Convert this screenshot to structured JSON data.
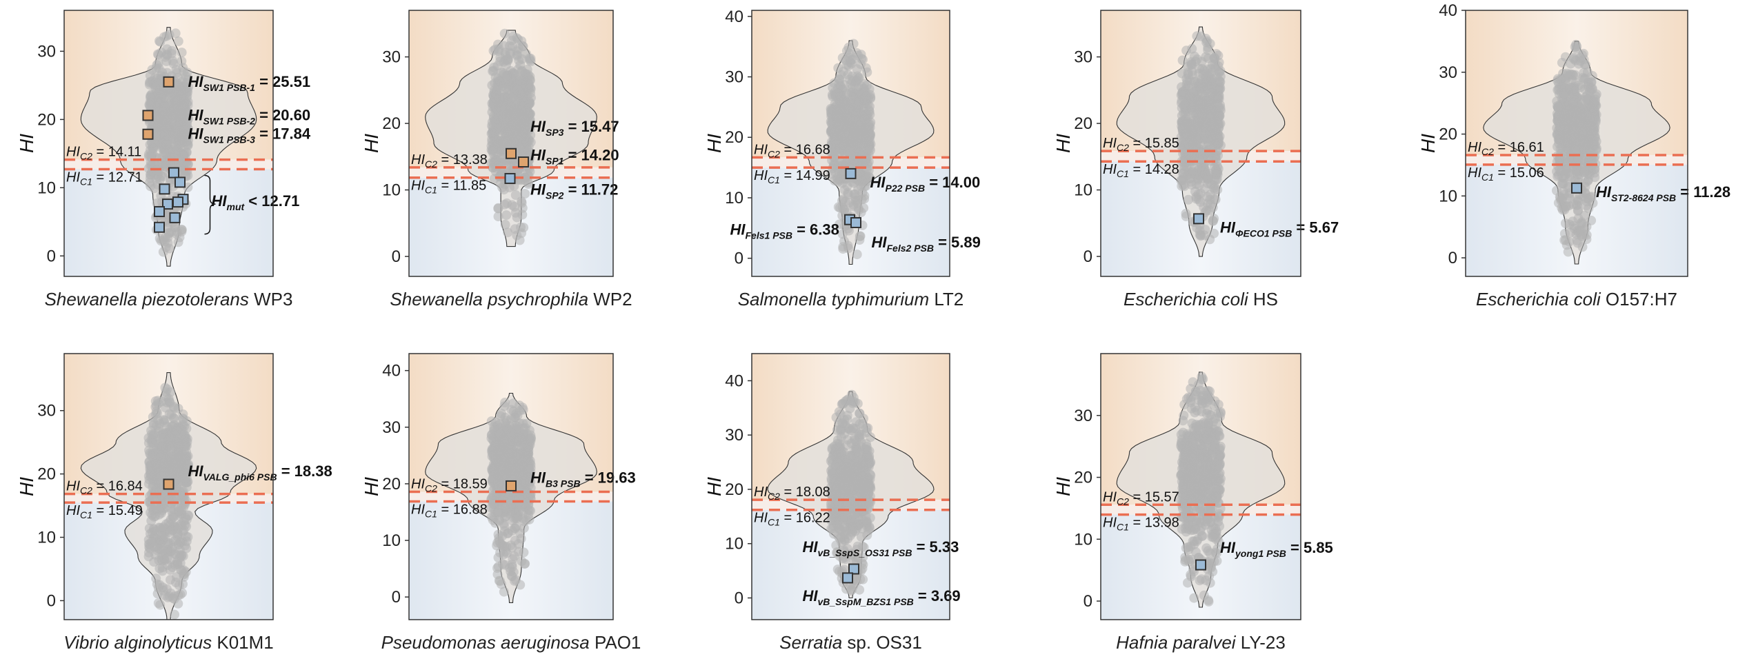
{
  "figure": {
    "colors": {
      "top_bg": "#f3dcc5",
      "bottom_bg": "#dfe7f0",
      "violin_fill": "#e3dfdb",
      "dot": "#b3b3b3",
      "threshold": "#ea6e52",
      "marker_orange": "#dfa46e",
      "marker_blue": "#9bbad6",
      "marker_stroke": "#333333"
    }
  },
  "chart_data": [
    {
      "type": "scatter",
      "subtype": "violin-jitter",
      "organism_italic": "Shewanella piezotolerans",
      "strain": "WP3",
      "ylabel": "HI",
      "ylim": [
        -3,
        36
      ],
      "yticks": [
        0,
        10,
        20,
        30
      ],
      "dist": {
        "min": -1.5,
        "max": 33.5,
        "segments": [
          [
            -1.5,
            0.02
          ],
          [
            4,
            0.12
          ],
          [
            9,
            0.18
          ],
          [
            14,
            0.55
          ],
          [
            20,
            1.0
          ],
          [
            24,
            0.9
          ],
          [
            28,
            0.15
          ],
          [
            33.5,
            0.02
          ]
        ]
      },
      "threshold_hi_c2": 14.11,
      "threshold_hi_c1": 12.71,
      "thresholds_text": {
        "c2": "HIC2 = 14.11",
        "c1": "HIC1 = 12.71"
      },
      "markers": [
        {
          "y": 25.51,
          "color": "orange",
          "dx": 0
        },
        {
          "y": 20.6,
          "color": "orange",
          "dx": -1
        },
        {
          "y": 17.84,
          "color": "orange",
          "dx": -1
        },
        {
          "y": 12.2,
          "color": "blue",
          "dx": 0.25
        },
        {
          "y": 10.8,
          "color": "blue",
          "dx": 0.55
        },
        {
          "y": 9.8,
          "color": "blue",
          "dx": -0.2
        },
        {
          "y": 8.3,
          "color": "blue",
          "dx": 0.7
        },
        {
          "y": 7.9,
          "color": "blue",
          "dx": 0.45
        },
        {
          "y": 7.6,
          "color": "blue",
          "dx": -0.05
        },
        {
          "y": 6.5,
          "color": "blue",
          "dx": -0.45
        },
        {
          "y": 5.6,
          "color": "blue",
          "dx": 0.3
        },
        {
          "y": 4.2,
          "color": "blue",
          "dx": -0.45
        }
      ],
      "labels": [
        {
          "text": "HISW1 PSB-1 = 25.51",
          "y": 25.51
        },
        {
          "text": "HISW1 PSB-2 = 20.60",
          "y": 20.6
        },
        {
          "text": "HISW1 PSB-3 = 17.84",
          "y": 17.84
        },
        {
          "text": "HImut < 12.71",
          "y": 8.0
        }
      ]
    },
    {
      "type": "scatter",
      "subtype": "violin-jitter",
      "organism_italic": "Shewanella psychrophila",
      "strain": "WP2",
      "ylabel": "HI",
      "ylim": [
        -3,
        37
      ],
      "yticks": [
        0,
        10,
        20,
        30
      ],
      "dist": {
        "min": 1.5,
        "max": 34,
        "segments": [
          [
            1.5,
            0.05
          ],
          [
            6,
            0.12
          ],
          [
            10,
            0.12
          ],
          [
            13,
            0.5
          ],
          [
            17,
            0.9
          ],
          [
            21,
            1.0
          ],
          [
            26,
            0.6
          ],
          [
            30,
            0.22
          ],
          [
            34,
            0.05
          ]
        ]
      },
      "threshold_hi_c2": 13.38,
      "threshold_hi_c1": 11.85,
      "thresholds_text": {
        "c2": "HIC2 = 13.38",
        "c1": "HIC1 = 11.85"
      },
      "markers": [
        {
          "y": 15.47,
          "color": "orange",
          "dx": 0
        },
        {
          "y": 14.2,
          "color": "orange",
          "dx": 0.6
        },
        {
          "y": 11.72,
          "color": "blue",
          "dx": -0.05
        }
      ],
      "labels": [
        {
          "text": "HISP3 = 15.47",
          "y": 19.5
        },
        {
          "text": "HISP1 = 14.20",
          "y": 15.2
        },
        {
          "text": "HISP2 = 11.72",
          "y": 10.0
        }
      ]
    },
    {
      "type": "scatter",
      "subtype": "violin-jitter",
      "organism_italic": "Salmonella typhimurium",
      "strain": "LT2",
      "ylabel": "HI",
      "ylim": [
        -3,
        41
      ],
      "yticks": [
        0,
        10,
        20,
        30,
        40
      ],
      "dist": {
        "min": -1,
        "max": 36,
        "segments": [
          [
            -1,
            0.02
          ],
          [
            6,
            0.1
          ],
          [
            11,
            0.14
          ],
          [
            16,
            0.5
          ],
          [
            21,
            1.0
          ],
          [
            25,
            0.85
          ],
          [
            30,
            0.18
          ],
          [
            36,
            0.02
          ]
        ]
      },
      "threshold_hi_c2": 16.68,
      "threshold_hi_c1": 14.99,
      "thresholds_text": {
        "c2": "HIC2 = 16.68",
        "c1": "HIC1 = 14.99"
      },
      "markers": [
        {
          "y": 14.0,
          "color": "blue",
          "dx": 0
        },
        {
          "y": 6.38,
          "color": "blue",
          "dx": -0.05
        },
        {
          "y": 5.89,
          "color": "blue",
          "dx": 0.25
        }
      ],
      "labels": [
        {
          "text": "HIP22 PSB = 14.00",
          "y": 12.5
        },
        {
          "text": "HIFels1 PSB = 6.38",
          "y": 4.7
        },
        {
          "text": "HIFels2 PSB = 5.89",
          "y": 2.6
        }
      ]
    },
    {
      "type": "scatter",
      "subtype": "violin-jitter",
      "organism_italic": "Escherichia coli",
      "strain": "HS",
      "ylabel": "HI",
      "ylim": [
        -3,
        37
      ],
      "yticks": [
        0,
        10,
        20,
        30
      ],
      "dist": {
        "min": 0,
        "max": 34.5,
        "segments": [
          [
            0,
            0.02
          ],
          [
            5,
            0.14
          ],
          [
            10,
            0.22
          ],
          [
            15,
            0.55
          ],
          [
            20,
            1.0
          ],
          [
            24,
            0.85
          ],
          [
            29,
            0.2
          ],
          [
            34.5,
            0.02
          ]
        ]
      },
      "threshold_hi_c2": 15.85,
      "threshold_hi_c1": 14.28,
      "thresholds_text": {
        "c2": "HIC2 = 15.85",
        "c1": "HIC1 = 14.28"
      },
      "markers": [
        {
          "y": 5.67,
          "color": "blue",
          "dx": -0.1
        }
      ],
      "labels": [
        {
          "text": "HIΦECO1 PSB = 5.67",
          "y": 4.3
        }
      ]
    },
    {
      "type": "scatter",
      "subtype": "violin-jitter",
      "organism_italic": "Escherichia coli",
      "strain": "O157:H7",
      "ylabel": "HI",
      "ylim": [
        -3,
        40
      ],
      "yticks": [
        0,
        10,
        20,
        30,
        40
      ],
      "dist": {
        "min": -1,
        "max": 35,
        "segments": [
          [
            -1,
            0.02
          ],
          [
            5,
            0.12
          ],
          [
            11,
            0.2
          ],
          [
            16,
            0.55
          ],
          [
            21,
            1.0
          ],
          [
            25,
            0.8
          ],
          [
            30,
            0.15
          ],
          [
            35,
            0.02
          ]
        ]
      },
      "threshold_hi_c2": 16.61,
      "threshold_hi_c1": 15.06,
      "thresholds_text": {
        "c2": "HIC2 = 16.61",
        "c1": "HIC1 = 15.06"
      },
      "markers": [
        {
          "y": 11.28,
          "color": "blue",
          "dx": 0
        }
      ],
      "labels": [
        {
          "text": "HIST2-8624 PSB = 11.28",
          "y": 10.6
        }
      ]
    },
    {
      "type": "scatter",
      "subtype": "violin-jitter",
      "organism_italic": "Vibrio alginolyticus",
      "strain": "K01M1",
      "ylabel": "HI",
      "ylim": [
        -3,
        39
      ],
      "yticks": [
        0,
        10,
        20,
        30
      ],
      "dist": {
        "min": -3,
        "max": 36,
        "segments": [
          [
            -3,
            0.02
          ],
          [
            3,
            0.15
          ],
          [
            7,
            0.35
          ],
          [
            11,
            0.5
          ],
          [
            14,
            0.3
          ],
          [
            17,
            0.7
          ],
          [
            21,
            1.0
          ],
          [
            25,
            0.6
          ],
          [
            30,
            0.12
          ],
          [
            36,
            0.02
          ]
        ]
      },
      "threshold_hi_c2": 16.84,
      "threshold_hi_c1": 15.49,
      "thresholds_text": {
        "c2": "HIC2 = 16.84",
        "c1": "HIC1 = 15.49"
      },
      "markers": [
        {
          "y": 18.38,
          "color": "orange",
          "dx": 0
        }
      ],
      "labels": [
        {
          "text": "HIVALG_phi6 PSB = 18.38",
          "y": 20.4
        }
      ]
    },
    {
      "type": "scatter",
      "subtype": "violin-jitter",
      "organism_italic": "Pseudomonas aeruginosa",
      "strain": "PAO1",
      "ylabel": "HI",
      "ylim": [
        -4,
        43
      ],
      "yticks": [
        0,
        10,
        20,
        30,
        40
      ],
      "dist": {
        "min": -1,
        "max": 36,
        "segments": [
          [
            -1,
            0.02
          ],
          [
            5,
            0.12
          ],
          [
            12,
            0.15
          ],
          [
            17,
            0.5
          ],
          [
            22,
            1.0
          ],
          [
            27,
            0.85
          ],
          [
            32,
            0.18
          ],
          [
            36,
            0.02
          ]
        ]
      },
      "threshold_hi_c2": 18.59,
      "threshold_hi_c1": 16.88,
      "thresholds_text": {
        "c2": "HIC2 = 18.59",
        "c1": "HIC1 = 16.88"
      },
      "markers": [
        {
          "y": 19.63,
          "color": "orange",
          "dx": 0
        }
      ],
      "labels": [
        {
          "text": "HIB3 PSB = 19.63",
          "y": 21.0
        }
      ]
    },
    {
      "type": "scatter",
      "subtype": "violin-jitter",
      "organism_italic": "Serratia",
      "strain": "sp. OS31",
      "ylabel": "HI",
      "ylim": [
        -4,
        45
      ],
      "yticks": [
        0,
        10,
        20,
        30,
        40
      ],
      "dist": {
        "min": 0,
        "max": 38,
        "segments": [
          [
            0,
            0.02
          ],
          [
            4,
            0.12
          ],
          [
            10,
            0.14
          ],
          [
            15,
            0.45
          ],
          [
            20,
            1.0
          ],
          [
            25,
            0.75
          ],
          [
            31,
            0.2
          ],
          [
            38,
            0.02
          ]
        ]
      },
      "threshold_hi_c2": 18.08,
      "threshold_hi_c1": 16.22,
      "thresholds_text": {
        "c2": "HIC2 = 18.08",
        "c1": "HIC1 = 16.22"
      },
      "markers": [
        {
          "y": 5.33,
          "color": "blue",
          "dx": 0.15
        },
        {
          "y": 3.69,
          "color": "blue",
          "dx": -0.15
        }
      ],
      "labels": [
        {
          "text": "HIvB_SspS_OS31 PSB = 5.33",
          "y": 9.3
        },
        {
          "text": "HIvB_SspM_BZS1 PSB = 3.69",
          "y": 0.3
        }
      ]
    },
    {
      "type": "scatter",
      "subtype": "violin-jitter",
      "organism_italic": "Hafnia paralvei",
      "strain": "LY-23",
      "ylabel": "HI",
      "ylim": [
        -3,
        40
      ],
      "yticks": [
        0,
        10,
        20,
        30
      ],
      "dist": {
        "min": -1,
        "max": 37,
        "segments": [
          [
            -1,
            0.02
          ],
          [
            4,
            0.12
          ],
          [
            9,
            0.2
          ],
          [
            14,
            0.5
          ],
          [
            19,
            1.0
          ],
          [
            24,
            0.85
          ],
          [
            29,
            0.25
          ],
          [
            37,
            0.02
          ]
        ]
      },
      "threshold_hi_c2": 15.57,
      "threshold_hi_c1": 13.98,
      "thresholds_text": {
        "c2": "HIC2 = 15.57",
        "c1": "HIC1 = 13.98"
      },
      "markers": [
        {
          "y": 5.85,
          "color": "blue",
          "dx": 0
        }
      ],
      "labels": [
        {
          "text": "HIyong1 PSB = 5.85",
          "y": 8.6
        }
      ]
    }
  ]
}
